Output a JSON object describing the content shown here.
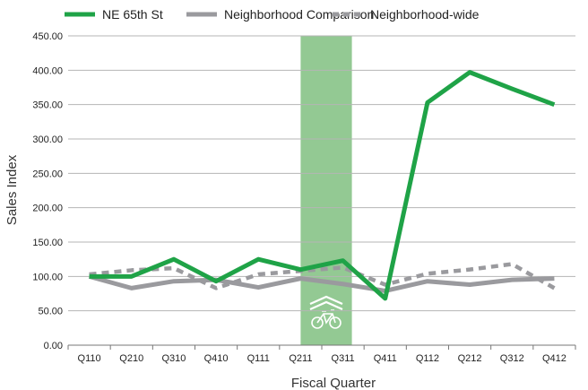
{
  "chart_data": {
    "type": "line",
    "title": "",
    "xlabel": "Fiscal Quarter",
    "ylabel": "Sales Index",
    "ylim": [
      0,
      450
    ],
    "yticks": [
      "0.00",
      "50.00",
      "100.00",
      "150.00",
      "200.00",
      "250.00",
      "300.00",
      "350.00",
      "400.00",
      "450.00"
    ],
    "categories": [
      "Q110",
      "Q210",
      "Q310",
      "Q410",
      "Q111",
      "Q211",
      "Q311",
      "Q411",
      "Q112",
      "Q212",
      "Q312",
      "Q412"
    ],
    "grid": true,
    "legend_position": "top",
    "highlight_band": {
      "from": "Q211",
      "to": "Q311",
      "icon": "bike-lane-sharrow-icon",
      "color": "#93c993"
    },
    "series": [
      {
        "name": "NE 65th St",
        "color": "#1fa347",
        "style": "solid",
        "values": [
          100,
          100,
          125,
          93,
          125,
          110,
          123,
          68,
          353,
          397,
          373,
          350
        ]
      },
      {
        "name": "Neighborhood Comparison",
        "color": "#9a9a9e",
        "style": "solid",
        "values": [
          100,
          83,
          93,
          95,
          84,
          97,
          89,
          79,
          93,
          88,
          95,
          97
        ]
      },
      {
        "name": "Neighborhood-wide",
        "color": "#9a9a9e",
        "style": "dashed",
        "values": [
          103,
          109,
          112,
          83,
          103,
          108,
          113,
          88,
          104,
          110,
          118,
          83
        ]
      }
    ]
  }
}
